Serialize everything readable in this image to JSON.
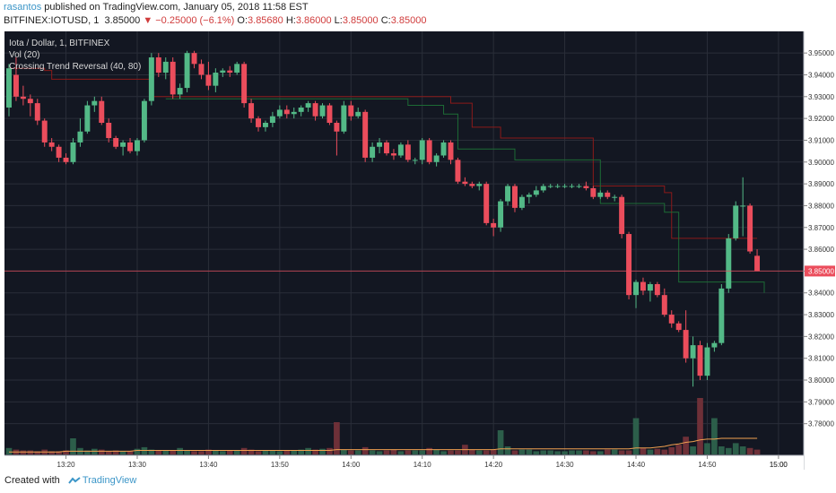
{
  "header": {
    "author": "rasantos",
    "publish_text": " published on TradingView.com, January 05, 2018 11:58 EST",
    "symbol": "BITFINEX:IOTUSD, 1",
    "price": "3.85000",
    "change": "▼ −0.25000 (−6.1%)",
    "o_label": "O:",
    "o_value": "3.85680",
    "h_label": "H:",
    "h_value": "3.86000",
    "l_label": "L:",
    "l_value": "3.85000",
    "c_label": "C:",
    "c_value": "3.85000"
  },
  "legend": {
    "title": "Iota / Dollar, 1, BITFINEX",
    "vol": "Vol (20)",
    "indicator": "Crossing Trend Reversal (40, 80)"
  },
  "footer": {
    "created_with": "Created with",
    "brand": "TradingView"
  },
  "colors": {
    "background": "#131722",
    "grid": "#2a2e39",
    "up": "#53b987",
    "down": "#eb4d5c",
    "up_volume": "#2c5e4a",
    "down_volume": "#6e3038",
    "upper_band": "#8b1a1a",
    "lower_band": "#1d6b35",
    "vol_ma": "#f0a050",
    "price_line": "#eb4d5c"
  },
  "chart_data": {
    "type": "candlestick",
    "title": "Iota / Dollar, 1, BITFINEX",
    "ylim": [
      3.77,
      3.955
    ],
    "xlim": [
      "13:12",
      "14:58"
    ],
    "y_ticks": [
      "3.95000",
      "3.94000",
      "3.93000",
      "3.92000",
      "3.91000",
      "3.90000",
      "3.89000",
      "3.88000",
      "3.87000",
      "3.86000",
      "3.85000",
      "3.84000",
      "3.83000",
      "3.82000",
      "3.81000",
      "3.80000",
      "3.79000",
      "3.78000"
    ],
    "x_ticks": [
      "13:20",
      "13:30",
      "13:40",
      "13:50",
      "14:00",
      "14:10",
      "14:20",
      "14:30",
      "14:40",
      "14:50",
      "15:00"
    ],
    "last_price": "3.85000",
    "candles": [
      {
        "t": "13:12",
        "o": 3.925,
        "h": 3.945,
        "l": 3.921,
        "c": 3.943
      },
      {
        "t": "13:13",
        "o": 3.94,
        "h": 3.948,
        "l": 3.928,
        "c": 3.93
      },
      {
        "t": "13:14",
        "o": 3.93,
        "h": 3.935,
        "l": 3.926,
        "c": 3.929
      },
      {
        "t": "13:15",
        "o": 3.929,
        "h": 3.931,
        "l": 3.921,
        "c": 3.927
      },
      {
        "t": "13:16",
        "o": 3.927,
        "h": 3.929,
        "l": 3.917,
        "c": 3.919
      },
      {
        "t": "13:17",
        "o": 3.919,
        "h": 3.92,
        "l": 3.907,
        "c": 3.909
      },
      {
        "t": "13:18",
        "o": 3.909,
        "h": 3.911,
        "l": 3.905,
        "c": 3.907
      },
      {
        "t": "13:19",
        "o": 3.907,
        "h": 3.908,
        "l": 3.9,
        "c": 3.902
      },
      {
        "t": "13:20",
        "o": 3.902,
        "h": 3.904,
        "l": 3.899,
        "c": 3.9
      },
      {
        "t": "13:21",
        "o": 3.9,
        "h": 3.911,
        "l": 3.899,
        "c": 3.909
      },
      {
        "t": "13:22",
        "o": 3.909,
        "h": 3.92,
        "l": 3.907,
        "c": 3.914
      },
      {
        "t": "13:23",
        "o": 3.914,
        "h": 3.928,
        "l": 3.913,
        "c": 3.926
      },
      {
        "t": "13:24",
        "o": 3.926,
        "h": 3.93,
        "l": 3.923,
        "c": 3.928
      },
      {
        "t": "13:25",
        "o": 3.928,
        "h": 3.93,
        "l": 3.917,
        "c": 3.918
      },
      {
        "t": "13:26",
        "o": 3.918,
        "h": 3.92,
        "l": 3.909,
        "c": 3.911
      },
      {
        "t": "13:27",
        "o": 3.911,
        "h": 3.912,
        "l": 3.906,
        "c": 3.907
      },
      {
        "t": "13:28",
        "o": 3.907,
        "h": 3.91,
        "l": 3.903,
        "c": 3.909
      },
      {
        "t": "13:29",
        "o": 3.909,
        "h": 3.911,
        "l": 3.904,
        "c": 3.905
      },
      {
        "t": "13:30",
        "o": 3.905,
        "h": 3.911,
        "l": 3.903,
        "c": 3.91
      },
      {
        "t": "13:31",
        "o": 3.91,
        "h": 3.929,
        "l": 3.909,
        "c": 3.928
      },
      {
        "t": "13:32",
        "o": 3.928,
        "h": 3.95,
        "l": 3.926,
        "c": 3.948
      },
      {
        "t": "13:33",
        "o": 3.948,
        "h": 3.95,
        "l": 3.939,
        "c": 3.941
      },
      {
        "t": "13:34",
        "o": 3.941,
        "h": 3.948,
        "l": 3.938,
        "c": 3.946
      },
      {
        "t": "13:35",
        "o": 3.946,
        "h": 3.948,
        "l": 3.929,
        "c": 3.931
      },
      {
        "t": "13:36",
        "o": 3.931,
        "h": 3.936,
        "l": 3.929,
        "c": 3.934
      },
      {
        "t": "13:37",
        "o": 3.934,
        "h": 3.951,
        "l": 3.932,
        "c": 3.95
      },
      {
        "t": "13:38",
        "o": 3.95,
        "h": 3.951,
        "l": 3.943,
        "c": 3.945
      },
      {
        "t": "13:39",
        "o": 3.945,
        "h": 3.947,
        "l": 3.938,
        "c": 3.94
      },
      {
        "t": "13:40",
        "o": 3.94,
        "h": 3.946,
        "l": 3.933,
        "c": 3.935
      },
      {
        "t": "13:41",
        "o": 3.935,
        "h": 3.943,
        "l": 3.932,
        "c": 3.941
      },
      {
        "t": "13:42",
        "o": 3.941,
        "h": 3.943,
        "l": 3.939,
        "c": 3.942
      },
      {
        "t": "13:43",
        "o": 3.942,
        "h": 3.944,
        "l": 3.939,
        "c": 3.941
      },
      {
        "t": "13:44",
        "o": 3.941,
        "h": 3.946,
        "l": 3.94,
        "c": 3.945
      },
      {
        "t": "13:45",
        "o": 3.945,
        "h": 3.946,
        "l": 3.925,
        "c": 3.927
      },
      {
        "t": "13:46",
        "o": 3.927,
        "h": 3.929,
        "l": 3.918,
        "c": 3.92
      },
      {
        "t": "13:47",
        "o": 3.92,
        "h": 3.921,
        "l": 3.914,
        "c": 3.916
      },
      {
        "t": "13:48",
        "o": 3.916,
        "h": 3.919,
        "l": 3.914,
        "c": 3.918
      },
      {
        "t": "13:49",
        "o": 3.918,
        "h": 3.923,
        "l": 3.916,
        "c": 3.921
      },
      {
        "t": "13:50",
        "o": 3.921,
        "h": 3.926,
        "l": 3.92,
        "c": 3.924
      },
      {
        "t": "13:51",
        "o": 3.924,
        "h": 3.926,
        "l": 3.92,
        "c": 3.922
      },
      {
        "t": "13:52",
        "o": 3.922,
        "h": 3.925,
        "l": 3.92,
        "c": 3.923
      },
      {
        "t": "13:53",
        "o": 3.923,
        "h": 3.926,
        "l": 3.921,
        "c": 3.925
      },
      {
        "t": "13:54",
        "o": 3.925,
        "h": 3.928,
        "l": 3.923,
        "c": 3.927
      },
      {
        "t": "13:55",
        "o": 3.927,
        "h": 3.928,
        "l": 3.919,
        "c": 3.921
      },
      {
        "t": "13:56",
        "o": 3.921,
        "h": 3.927,
        "l": 3.92,
        "c": 3.926
      },
      {
        "t": "13:57",
        "o": 3.926,
        "h": 3.927,
        "l": 3.917,
        "c": 3.918
      },
      {
        "t": "13:58",
        "o": 3.918,
        "h": 3.919,
        "l": 3.903,
        "c": 3.914
      },
      {
        "t": "13:59",
        "o": 3.914,
        "h": 3.928,
        "l": 3.913,
        "c": 3.926
      },
      {
        "t": "14:00",
        "o": 3.926,
        "h": 3.928,
        "l": 3.919,
        "c": 3.921
      },
      {
        "t": "14:01",
        "o": 3.921,
        "h": 3.925,
        "l": 3.92,
        "c": 3.923
      },
      {
        "t": "14:02",
        "o": 3.923,
        "h": 3.924,
        "l": 3.9,
        "c": 3.902
      },
      {
        "t": "14:03",
        "o": 3.902,
        "h": 3.909,
        "l": 3.9,
        "c": 3.907
      },
      {
        "t": "14:04",
        "o": 3.907,
        "h": 3.911,
        "l": 3.904,
        "c": 3.909
      },
      {
        "t": "14:05",
        "o": 3.909,
        "h": 3.91,
        "l": 3.903,
        "c": 3.904
      },
      {
        "t": "14:06",
        "o": 3.904,
        "h": 3.906,
        "l": 3.901,
        "c": 3.903
      },
      {
        "t": "14:07",
        "o": 3.903,
        "h": 3.909,
        "l": 3.902,
        "c": 3.908
      },
      {
        "t": "14:08",
        "o": 3.908,
        "h": 3.91,
        "l": 3.9,
        "c": 3.901
      },
      {
        "t": "14:09",
        "o": 3.901,
        "h": 3.902,
        "l": 3.899,
        "c": 3.901
      },
      {
        "t": "14:10",
        "o": 3.901,
        "h": 3.911,
        "l": 3.899,
        "c": 3.91
      },
      {
        "t": "14:11",
        "o": 3.91,
        "h": 3.911,
        "l": 3.899,
        "c": 3.9
      },
      {
        "t": "14:12",
        "o": 3.9,
        "h": 3.904,
        "l": 3.898,
        "c": 3.903
      },
      {
        "t": "14:13",
        "o": 3.903,
        "h": 3.91,
        "l": 3.902,
        "c": 3.909
      },
      {
        "t": "14:14",
        "o": 3.909,
        "h": 3.91,
        "l": 3.899,
        "c": 3.901
      },
      {
        "t": "14:15",
        "o": 3.901,
        "h": 3.902,
        "l": 3.89,
        "c": 3.891
      },
      {
        "t": "14:16",
        "o": 3.891,
        "h": 3.893,
        "l": 3.889,
        "c": 3.89
      },
      {
        "t": "14:17",
        "o": 3.89,
        "h": 3.891,
        "l": 3.888,
        "c": 3.889
      },
      {
        "t": "14:18",
        "o": 3.889,
        "h": 3.891,
        "l": 3.887,
        "c": 3.89
      },
      {
        "t": "14:19",
        "o": 3.89,
        "h": 3.891,
        "l": 3.871,
        "c": 3.872
      },
      {
        "t": "14:20",
        "o": 3.872,
        "h": 3.874,
        "l": 3.866,
        "c": 3.87
      },
      {
        "t": "14:21",
        "o": 3.87,
        "h": 3.883,
        "l": 3.868,
        "c": 3.882
      },
      {
        "t": "14:22",
        "o": 3.882,
        "h": 3.89,
        "l": 3.88,
        "c": 3.889
      },
      {
        "t": "14:23",
        "o": 3.889,
        "h": 3.89,
        "l": 3.877,
        "c": 3.879
      },
      {
        "t": "14:24",
        "o": 3.879,
        "h": 3.885,
        "l": 3.878,
        "c": 3.884
      },
      {
        "t": "14:25",
        "o": 3.884,
        "h": 3.886,
        "l": 3.881,
        "c": 3.885
      },
      {
        "t": "14:26",
        "o": 3.885,
        "h": 3.889,
        "l": 3.884,
        "c": 3.887
      },
      {
        "t": "14:27",
        "o": 3.887,
        "h": 3.89,
        "l": 3.886,
        "c": 3.889
      },
      {
        "t": "14:28",
        "o": 3.889,
        "h": 3.89,
        "l": 3.888,
        "c": 3.889
      },
      {
        "t": "14:29",
        "o": 3.889,
        "h": 3.89,
        "l": 3.888,
        "c": 3.889
      },
      {
        "t": "14:30",
        "o": 3.889,
        "h": 3.89,
        "l": 3.888,
        "c": 3.889
      },
      {
        "t": "14:31",
        "o": 3.889,
        "h": 3.89,
        "l": 3.888,
        "c": 3.889
      },
      {
        "t": "14:32",
        "o": 3.889,
        "h": 3.89,
        "l": 3.888,
        "c": 3.889
      },
      {
        "t": "14:33",
        "o": 3.889,
        "h": 3.891,
        "l": 3.887,
        "c": 3.888
      },
      {
        "t": "14:34",
        "o": 3.888,
        "h": 3.889,
        "l": 3.883,
        "c": 3.884
      },
      {
        "t": "14:35",
        "o": 3.884,
        "h": 3.887,
        "l": 3.883,
        "c": 3.886
      },
      {
        "t": "14:36",
        "o": 3.886,
        "h": 3.887,
        "l": 3.883,
        "c": 3.884
      },
      {
        "t": "14:37",
        "o": 3.884,
        "h": 3.885,
        "l": 3.882,
        "c": 3.884
      },
      {
        "t": "14:38",
        "o": 3.884,
        "h": 3.885,
        "l": 3.865,
        "c": 3.867
      },
      {
        "t": "14:39",
        "o": 3.867,
        "h": 3.868,
        "l": 3.837,
        "c": 3.839
      },
      {
        "t": "14:40",
        "o": 3.839,
        "h": 3.846,
        "l": 3.833,
        "c": 3.845
      },
      {
        "t": "14:41",
        "o": 3.845,
        "h": 3.847,
        "l": 3.839,
        "c": 3.841
      },
      {
        "t": "14:42",
        "o": 3.841,
        "h": 3.845,
        "l": 3.836,
        "c": 3.844
      },
      {
        "t": "14:43",
        "o": 3.844,
        "h": 3.845,
        "l": 3.838,
        "c": 3.839
      },
      {
        "t": "14:44",
        "o": 3.839,
        "h": 3.842,
        "l": 3.829,
        "c": 3.83
      },
      {
        "t": "14:45",
        "o": 3.83,
        "h": 3.832,
        "l": 3.824,
        "c": 3.826
      },
      {
        "t": "14:46",
        "o": 3.826,
        "h": 3.827,
        "l": 3.822,
        "c": 3.823
      },
      {
        "t": "14:47",
        "o": 3.823,
        "h": 3.832,
        "l": 3.808,
        "c": 3.81
      },
      {
        "t": "14:48",
        "o": 3.81,
        "h": 3.82,
        "l": 3.797,
        "c": 3.816
      },
      {
        "t": "14:49",
        "o": 3.816,
        "h": 3.818,
        "l": 3.8,
        "c": 3.802
      },
      {
        "t": "14:50",
        "o": 3.802,
        "h": 3.817,
        "l": 3.8,
        "c": 3.815
      },
      {
        "t": "14:51",
        "o": 3.815,
        "h": 3.818,
        "l": 3.813,
        "c": 3.817
      },
      {
        "t": "14:52",
        "o": 3.817,
        "h": 3.844,
        "l": 3.816,
        "c": 3.842
      },
      {
        "t": "14:53",
        "o": 3.842,
        "h": 3.867,
        "l": 3.84,
        "c": 3.865
      },
      {
        "t": "14:54",
        "o": 3.865,
        "h": 3.882,
        "l": 3.864,
        "c": 3.88
      },
      {
        "t": "14:55",
        "o": 3.88,
        "h": 3.893,
        "l": 3.866,
        "c": 3.88
      },
      {
        "t": "14:56",
        "o": 3.88,
        "h": 3.881,
        "l": 3.858,
        "c": 3.859
      },
      {
        "t": "14:57",
        "o": 3.857,
        "h": 3.86,
        "l": 3.85,
        "c": 3.85
      }
    ],
    "upper_band": [
      {
        "t": "13:12",
        "v": 3.943
      },
      {
        "t": "13:17",
        "v": 3.942
      },
      {
        "t": "13:18",
        "v": 3.938
      },
      {
        "t": "13:31",
        "v": 3.938
      },
      {
        "t": "13:32",
        "v": 3.93
      },
      {
        "t": "14:12",
        "v": 3.93
      },
      {
        "t": "14:14",
        "v": 3.927
      },
      {
        "t": "14:17",
        "v": 3.916
      },
      {
        "t": "14:20",
        "v": 3.916
      },
      {
        "t": "14:21",
        "v": 3.911
      },
      {
        "t": "14:33",
        "v": 3.911
      },
      {
        "t": "14:34",
        "v": 3.889
      },
      {
        "t": "14:42",
        "v": 3.889
      },
      {
        "t": "14:44",
        "v": 3.886
      },
      {
        "t": "14:45",
        "v": 3.865
      },
      {
        "t": "14:57",
        "v": 3.865
      }
    ],
    "lower_band": [
      {
        "t": "13:34",
        "v": 3.929
      },
      {
        "t": "14:06",
        "v": 3.929
      },
      {
        "t": "14:08",
        "v": 3.926
      },
      {
        "t": "14:13",
        "v": 3.922
      },
      {
        "t": "14:15",
        "v": 3.906
      },
      {
        "t": "14:22",
        "v": 3.906
      },
      {
        "t": "14:23",
        "v": 3.901
      },
      {
        "t": "14:33",
        "v": 3.901
      },
      {
        "t": "14:35",
        "v": 3.881
      },
      {
        "t": "14:42",
        "v": 3.881
      },
      {
        "t": "14:44",
        "v": 3.877
      },
      {
        "t": "14:46",
        "v": 3.845
      },
      {
        "t": "14:56",
        "v": 3.845
      },
      {
        "t": "14:58",
        "v": 3.84
      }
    ],
    "volume_scale_max": 100,
    "volume": [
      8,
      6,
      5,
      5,
      4,
      6,
      4,
      4,
      5,
      20,
      8,
      5,
      7,
      6,
      4,
      5,
      4,
      4,
      7,
      9,
      6,
      5,
      5,
      5,
      8,
      5,
      4,
      4,
      6,
      5,
      4,
      5,
      5,
      8,
      6,
      4,
      5,
      5,
      4,
      5,
      5,
      6,
      8,
      6,
      7,
      8,
      40,
      6,
      5,
      5,
      9,
      5,
      4,
      5,
      6,
      4,
      5,
      5,
      5,
      8,
      6,
      4,
      5,
      5,
      12,
      6,
      5,
      5,
      6,
      30,
      10,
      5,
      6,
      6,
      4,
      5,
      5,
      4,
      4,
      5,
      5,
      5,
      4,
      4,
      6,
      6,
      5,
      5,
      45,
      8,
      6,
      7,
      6,
      9,
      12,
      22,
      10,
      70,
      14,
      45,
      10,
      8,
      14,
      10,
      8,
      6
    ],
    "volume_ma": [
      3,
      3,
      3,
      3,
      3,
      3,
      3,
      3,
      4,
      4,
      4,
      4,
      4,
      4,
      4,
      4,
      4,
      4,
      5,
      5,
      5,
      5,
      5,
      5,
      5,
      5,
      5,
      5,
      5,
      5,
      5,
      5,
      5,
      5,
      5,
      5,
      5,
      5,
      5,
      5,
      5,
      5,
      5,
      5,
      5,
      5,
      6,
      6,
      6,
      6,
      6,
      6,
      6,
      6,
      6,
      6,
      6,
      6,
      6,
      6,
      6,
      6,
      6,
      6,
      6,
      6,
      6,
      6,
      6,
      7,
      7,
      7,
      7,
      7,
      7,
      7,
      7,
      7,
      7,
      7,
      7,
      7,
      7,
      7,
      7,
      7,
      7,
      7,
      8,
      8,
      8,
      9,
      10,
      12,
      13,
      15,
      16,
      18,
      19,
      19,
      20,
      20,
      20,
      20,
      20,
      20
    ]
  }
}
